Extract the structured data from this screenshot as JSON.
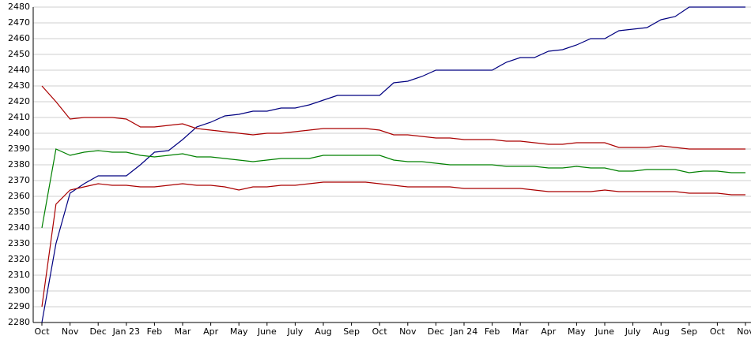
{
  "chart_data": {
    "type": "line",
    "categories": [
      "Oct",
      null,
      "Nov",
      null,
      "Dec",
      null,
      "Jan 23",
      null,
      "Feb",
      null,
      "Mar",
      null,
      "Apr",
      null,
      "May",
      null,
      "June",
      null,
      "July",
      null,
      "Aug",
      null,
      "Sep",
      null,
      "Oct",
      null,
      "Nov",
      null,
      "Dec",
      null,
      "Jan 24",
      null,
      "Feb",
      null,
      "Mar",
      null,
      "Apr",
      null,
      "May",
      null,
      "June",
      null,
      "July",
      null,
      "Aug",
      null,
      "Sep",
      null,
      "Oct",
      null,
      "Nov"
    ],
    "series": [
      {
        "color": "#000080",
        "values": [
          2280,
          2330,
          2362,
          2368,
          2373,
          2373,
          2373,
          2380,
          2388,
          2389,
          2396,
          2404,
          2407,
          2411,
          2412,
          2414,
          2414,
          2416,
          2416,
          2418,
          2421,
          2424,
          2424,
          2424,
          2424,
          2432,
          2433,
          2436,
          2440,
          2440,
          2440,
          2440,
          2440,
          2445,
          2448,
          2448,
          2452,
          2453,
          2456,
          2460,
          2460,
          2465,
          2466,
          2467,
          2472,
          2474,
          2480,
          2480,
          2480,
          2480,
          2480
        ]
      },
      {
        "color": "#aa0000",
        "values": [
          2430,
          2420,
          2409,
          2410,
          2410,
          2410,
          2409,
          2404,
          2404,
          2405,
          2406,
          2403,
          2402,
          2401,
          2400,
          2399,
          2400,
          2400,
          2401,
          2402,
          2403,
          2403,
          2403,
          2403,
          2402,
          2399,
          2399,
          2398,
          2397,
          2397,
          2396,
          2396,
          2396,
          2395,
          2395,
          2394,
          2393,
          2393,
          2394,
          2394,
          2394,
          2391,
          2391,
          2391,
          2392,
          2391,
          2390,
          2390,
          2390,
          2390,
          2390
        ]
      },
      {
        "color": "#008000",
        "values": [
          2340,
          2390,
          2386,
          2388,
          2389,
          2388,
          2388,
          2386,
          2385,
          2386,
          2387,
          2385,
          2385,
          2384,
          2383,
          2382,
          2383,
          2384,
          2384,
          2384,
          2386,
          2386,
          2386,
          2386,
          2386,
          2383,
          2382,
          2382,
          2381,
          2380,
          2380,
          2380,
          2380,
          2379,
          2379,
          2379,
          2378,
          2378,
          2379,
          2378,
          2378,
          2376,
          2376,
          2377,
          2377,
          2377,
          2375,
          2376,
          2376,
          2375,
          2375
        ]
      },
      {
        "color": "#aa0000",
        "values": [
          2290,
          2355,
          2364,
          2366,
          2368,
          2367,
          2367,
          2366,
          2366,
          2367,
          2368,
          2367,
          2367,
          2366,
          2364,
          2366,
          2366,
          2367,
          2367,
          2368,
          2369,
          2369,
          2369,
          2369,
          2368,
          2367,
          2366,
          2366,
          2366,
          2366,
          2365,
          2365,
          2365,
          2365,
          2365,
          2364,
          2363,
          2363,
          2363,
          2363,
          2364,
          2363,
          2363,
          2363,
          2363,
          2363,
          2362,
          2362,
          2362,
          2361,
          2361
        ]
      }
    ],
    "ylim": [
      2280,
      2480
    ],
    "yticks": [
      2280,
      2290,
      2300,
      2310,
      2320,
      2330,
      2340,
      2350,
      2360,
      2370,
      2380,
      2390,
      2400,
      2410,
      2420,
      2430,
      2440,
      2450,
      2460,
      2470,
      2480
    ],
    "grid": true
  }
}
